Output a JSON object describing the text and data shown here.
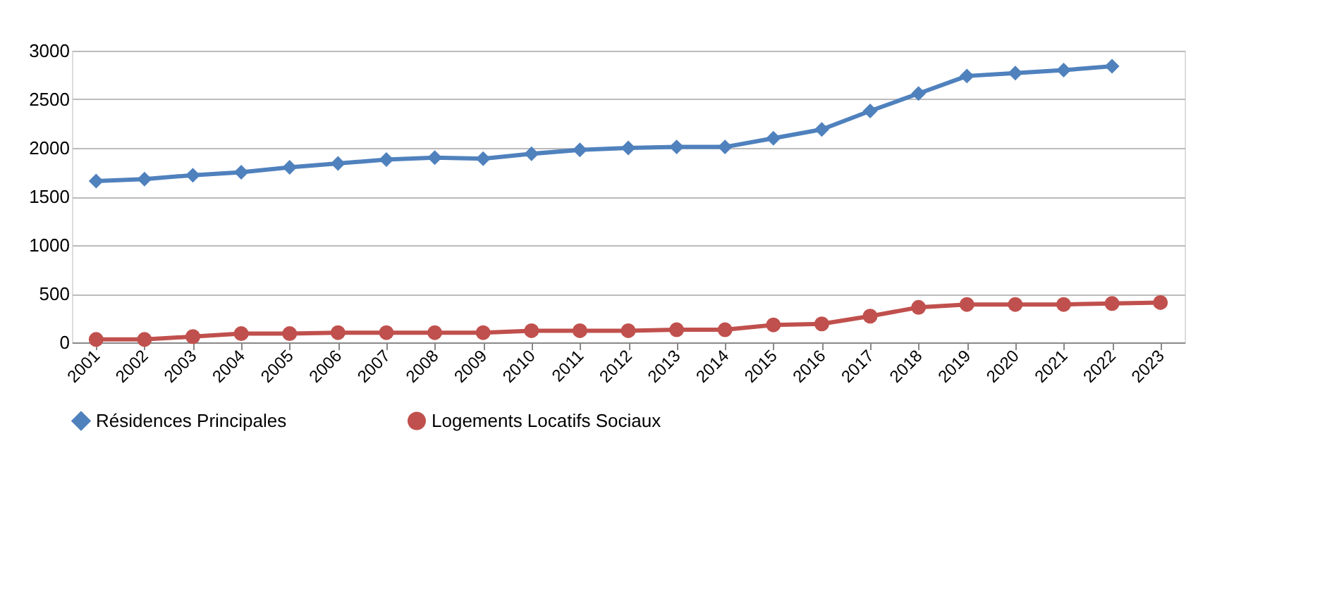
{
  "chart_data": {
    "type": "line",
    "categories": [
      "2001",
      "2002",
      "2003",
      "2004",
      "2005",
      "2006",
      "2007",
      "2008",
      "2009",
      "2010",
      "2011",
      "2012",
      "2013",
      "2014",
      "2015",
      "2016",
      "2017",
      "2018",
      "2019",
      "2020",
      "2021",
      "2022",
      "2023"
    ],
    "series": [
      {
        "name": "Résidences Principales",
        "color": "#4f81bd",
        "marker": "diamond",
        "values": [
          1660,
          1680,
          1720,
          1750,
          1800,
          1840,
          1880,
          1900,
          1890,
          1940,
          1980,
          2000,
          2010,
          2010,
          2100,
          2190,
          2380,
          2560,
          2740,
          2770,
          2800,
          2840,
          null
        ]
      },
      {
        "name": "Logements Locatifs Sociaux",
        "color": "#c0504d",
        "marker": "circle",
        "values": [
          30,
          30,
          60,
          90,
          90,
          100,
          100,
          100,
          100,
          120,
          120,
          120,
          130,
          130,
          180,
          190,
          270,
          360,
          390,
          390,
          390,
          400,
          410
        ]
      }
    ],
    "ylim": [
      0,
      3000
    ],
    "yticks": [
      0,
      500,
      1000,
      1500,
      2000,
      2500,
      3000
    ],
    "grid": "y",
    "legend": "bottom",
    "line_style": "solid"
  }
}
